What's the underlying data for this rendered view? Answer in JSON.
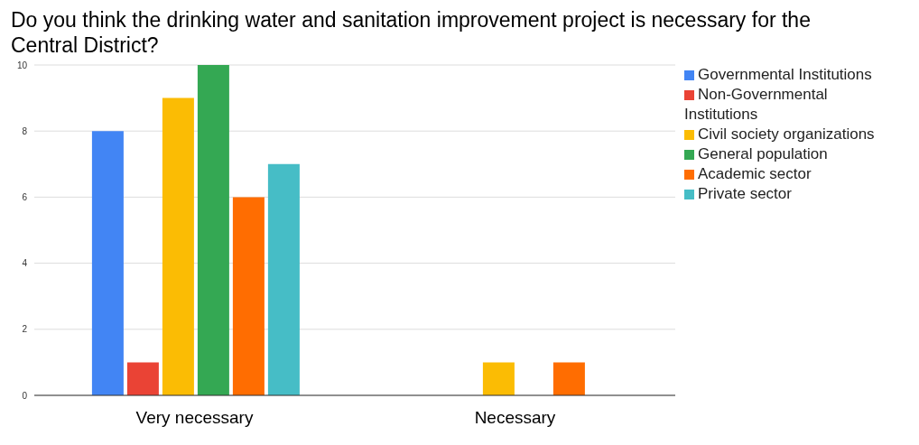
{
  "chart_data": {
    "type": "bar",
    "title": "Do you think the drinking water and sanitation improvement project is necessary for the Central District?",
    "categories": [
      "Very necessary",
      "Necessary"
    ],
    "series": [
      {
        "name": "Governmental Institutions",
        "color": "#4285f4",
        "values": [
          8,
          0
        ]
      },
      {
        "name": "Non-Governmental Institutions",
        "color": "#ea4335",
        "values": [
          1,
          0
        ]
      },
      {
        "name": "Civil society organizations",
        "color": "#fbbc04",
        "values": [
          9,
          1
        ]
      },
      {
        "name": "General population",
        "color": "#34a853",
        "values": [
          10,
          0
        ]
      },
      {
        "name": "Academic sector",
        "color": "#ff6d01",
        "values": [
          6,
          1
        ]
      },
      {
        "name": "Private sector",
        "color": "#46bdc6",
        "values": [
          7,
          0
        ]
      }
    ],
    "ylim": [
      0,
      10
    ],
    "yticks": [
      0,
      2,
      4,
      6,
      8,
      10
    ],
    "grid": "y",
    "legend": "top right"
  }
}
